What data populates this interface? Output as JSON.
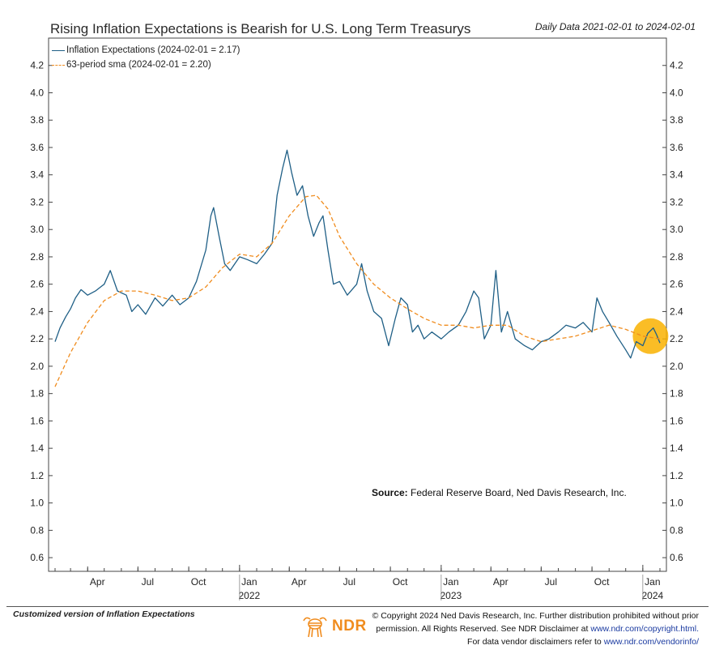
{
  "header": {
    "title": "Rising Inflation Expectations is Bearish for U.S. Long Term Treasurys",
    "date_range": "Daily Data 2021-02-01 to 2024-02-01"
  },
  "legend": {
    "series1": "Inflation Expectations (2024-02-01 = 2.17)",
    "series2": "63-period sma (2024-02-01 = 2.20)"
  },
  "source": {
    "label": "Source:",
    "text": "Federal Reserve Board, Ned Davis Research, Inc."
  },
  "footer": {
    "customized": "Customized version of Inflation Expectations",
    "logo_text": "NDR",
    "copyright_line1": "© Copyright 2024 Ned Davis Research, Inc. Further distribution prohibited without prior",
    "copyright_line2_text": "permission. All Rights Reserved. See NDR Disclaimer at",
    "copyright_line2_link": "www.ndr.com/copyright.html.",
    "copyright_line3_text": "For data vendor disclaimers refer to",
    "copyright_line3_link": "www.ndr.com/vendorinfo/"
  },
  "colors": {
    "series1": "#1f5f86",
    "series2": "#f08c1e",
    "highlight": "#f9b200"
  },
  "chart_data": {
    "type": "line",
    "ylim": [
      0.5,
      4.4
    ],
    "y_ticks": [
      0.6,
      0.8,
      1.0,
      1.2,
      1.4,
      1.6,
      1.8,
      2.0,
      2.2,
      2.4,
      2.6,
      2.8,
      3.0,
      3.2,
      3.4,
      3.6,
      3.8,
      4.0,
      4.2
    ],
    "x_range": [
      "2021-02-01",
      "2024-02-01"
    ],
    "x_ticks": [
      {
        "date": "2021-04-01",
        "label": "Apr",
        "year": ""
      },
      {
        "date": "2021-07-01",
        "label": "Jul",
        "year": ""
      },
      {
        "date": "2021-10-01",
        "label": "Oct",
        "year": ""
      },
      {
        "date": "2022-01-01",
        "label": "Jan",
        "year": "2022"
      },
      {
        "date": "2022-04-01",
        "label": "Apr",
        "year": ""
      },
      {
        "date": "2022-07-01",
        "label": "Jul",
        "year": ""
      },
      {
        "date": "2022-10-01",
        "label": "Oct",
        "year": ""
      },
      {
        "date": "2023-01-01",
        "label": "Jan",
        "year": "2023"
      },
      {
        "date": "2023-04-01",
        "label": "Apr",
        "year": ""
      },
      {
        "date": "2023-07-01",
        "label": "Jul",
        "year": ""
      },
      {
        "date": "2023-10-01",
        "label": "Oct",
        "year": ""
      },
      {
        "date": "2024-01-01",
        "label": "Jan",
        "year": "2024"
      }
    ],
    "highlight": {
      "date": "2024-01-15",
      "value": 2.22
    },
    "series": [
      {
        "name": "Inflation Expectations (2024-02-01 = 2.17)",
        "style": "solid",
        "points": [
          [
            "2021-02-01",
            2.18
          ],
          [
            "2021-02-10",
            2.28
          ],
          [
            "2021-02-20",
            2.36
          ],
          [
            "2021-03-01",
            2.42
          ],
          [
            "2021-03-10",
            2.5
          ],
          [
            "2021-03-20",
            2.56
          ],
          [
            "2021-04-01",
            2.52
          ],
          [
            "2021-04-15",
            2.55
          ],
          [
            "2021-05-01",
            2.6
          ],
          [
            "2021-05-12",
            2.7
          ],
          [
            "2021-05-25",
            2.55
          ],
          [
            "2021-06-10",
            2.52
          ],
          [
            "2021-06-20",
            2.4
          ],
          [
            "2021-07-01",
            2.45
          ],
          [
            "2021-07-15",
            2.38
          ],
          [
            "2021-08-01",
            2.5
          ],
          [
            "2021-08-15",
            2.44
          ],
          [
            "2021-09-01",
            2.52
          ],
          [
            "2021-09-15",
            2.45
          ],
          [
            "2021-10-01",
            2.5
          ],
          [
            "2021-10-15",
            2.62
          ],
          [
            "2021-11-01",
            2.85
          ],
          [
            "2021-11-10",
            3.1
          ],
          [
            "2021-11-15",
            3.16
          ],
          [
            "2021-11-25",
            2.95
          ],
          [
            "2021-12-05",
            2.75
          ],
          [
            "2021-12-15",
            2.7
          ],
          [
            "2022-01-01",
            2.8
          ],
          [
            "2022-01-15",
            2.78
          ],
          [
            "2022-02-01",
            2.75
          ],
          [
            "2022-02-15",
            2.82
          ],
          [
            "2022-03-01",
            2.9
          ],
          [
            "2022-03-10",
            3.25
          ],
          [
            "2022-03-20",
            3.45
          ],
          [
            "2022-03-28",
            3.58
          ],
          [
            "2022-04-05",
            3.42
          ],
          [
            "2022-04-15",
            3.25
          ],
          [
            "2022-04-25",
            3.32
          ],
          [
            "2022-05-05",
            3.1
          ],
          [
            "2022-05-15",
            2.95
          ],
          [
            "2022-05-25",
            3.05
          ],
          [
            "2022-06-01",
            3.1
          ],
          [
            "2022-06-10",
            2.85
          ],
          [
            "2022-06-20",
            2.6
          ],
          [
            "2022-07-01",
            2.62
          ],
          [
            "2022-07-15",
            2.52
          ],
          [
            "2022-08-01",
            2.6
          ],
          [
            "2022-08-10",
            2.75
          ],
          [
            "2022-08-20",
            2.55
          ],
          [
            "2022-09-01",
            2.4
          ],
          [
            "2022-09-15",
            2.35
          ],
          [
            "2022-09-28",
            2.15
          ],
          [
            "2022-10-10",
            2.35
          ],
          [
            "2022-10-20",
            2.5
          ],
          [
            "2022-11-01",
            2.45
          ],
          [
            "2022-11-10",
            2.25
          ],
          [
            "2022-11-20",
            2.3
          ],
          [
            "2022-12-01",
            2.2
          ],
          [
            "2022-12-15",
            2.25
          ],
          [
            "2023-01-01",
            2.2
          ],
          [
            "2023-01-15",
            2.25
          ],
          [
            "2023-02-01",
            2.3
          ],
          [
            "2023-02-15",
            2.4
          ],
          [
            "2023-03-01",
            2.55
          ],
          [
            "2023-03-10",
            2.5
          ],
          [
            "2023-03-20",
            2.2
          ],
          [
            "2023-04-01",
            2.3
          ],
          [
            "2023-04-10",
            2.7
          ],
          [
            "2023-04-20",
            2.25
          ],
          [
            "2023-05-01",
            2.4
          ],
          [
            "2023-05-15",
            2.2
          ],
          [
            "2023-06-01",
            2.15
          ],
          [
            "2023-06-15",
            2.12
          ],
          [
            "2023-07-01",
            2.18
          ],
          [
            "2023-07-15",
            2.2
          ],
          [
            "2023-08-01",
            2.25
          ],
          [
            "2023-08-15",
            2.3
          ],
          [
            "2023-09-01",
            2.28
          ],
          [
            "2023-09-15",
            2.32
          ],
          [
            "2023-10-01",
            2.25
          ],
          [
            "2023-10-10",
            2.5
          ],
          [
            "2023-10-20",
            2.4
          ],
          [
            "2023-11-01",
            2.32
          ],
          [
            "2023-11-15",
            2.22
          ],
          [
            "2023-12-01",
            2.12
          ],
          [
            "2023-12-10",
            2.06
          ],
          [
            "2023-12-20",
            2.18
          ],
          [
            "2024-01-01",
            2.15
          ],
          [
            "2024-01-10",
            2.24
          ],
          [
            "2024-01-20",
            2.28
          ],
          [
            "2024-01-26",
            2.23
          ],
          [
            "2024-02-01",
            2.17
          ]
        ]
      },
      {
        "name": "63-period sma (2024-02-01 = 2.20)",
        "style": "dashed",
        "points": [
          [
            "2021-02-01",
            1.85
          ],
          [
            "2021-03-01",
            2.1
          ],
          [
            "2021-04-01",
            2.32
          ],
          [
            "2021-05-01",
            2.48
          ],
          [
            "2021-06-01",
            2.55
          ],
          [
            "2021-07-01",
            2.55
          ],
          [
            "2021-08-01",
            2.52
          ],
          [
            "2021-09-01",
            2.48
          ],
          [
            "2021-10-01",
            2.5
          ],
          [
            "2021-11-01",
            2.58
          ],
          [
            "2021-12-01",
            2.72
          ],
          [
            "2022-01-01",
            2.82
          ],
          [
            "2022-02-01",
            2.8
          ],
          [
            "2022-03-01",
            2.9
          ],
          [
            "2022-04-01",
            3.1
          ],
          [
            "2022-05-01",
            3.24
          ],
          [
            "2022-05-20",
            3.25
          ],
          [
            "2022-06-10",
            3.15
          ],
          [
            "2022-07-01",
            2.95
          ],
          [
            "2022-08-01",
            2.75
          ],
          [
            "2022-09-01",
            2.6
          ],
          [
            "2022-10-01",
            2.5
          ],
          [
            "2022-11-01",
            2.42
          ],
          [
            "2022-12-01",
            2.35
          ],
          [
            "2023-01-01",
            2.3
          ],
          [
            "2023-02-01",
            2.3
          ],
          [
            "2023-03-01",
            2.28
          ],
          [
            "2023-04-01",
            2.3
          ],
          [
            "2023-05-01",
            2.3
          ],
          [
            "2023-06-01",
            2.22
          ],
          [
            "2023-07-01",
            2.18
          ],
          [
            "2023-08-01",
            2.2
          ],
          [
            "2023-09-01",
            2.22
          ],
          [
            "2023-10-01",
            2.26
          ],
          [
            "2023-11-01",
            2.3
          ],
          [
            "2023-12-01",
            2.27
          ],
          [
            "2024-01-01",
            2.22
          ],
          [
            "2024-02-01",
            2.2
          ]
        ]
      }
    ]
  }
}
